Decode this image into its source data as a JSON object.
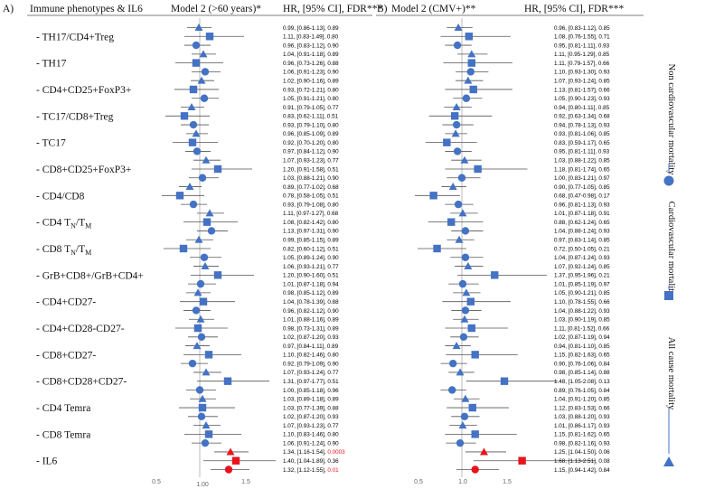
{
  "chart_data": {
    "type": "forest",
    "panel_a": {
      "tag": "A)",
      "header_label": "Immune phenotypes & IL6",
      "header_model": "Model 2 (>60 years)*",
      "header_hr": "HR, [95% CI], FDR***",
      "x_ticks": [
        "0.5",
        "1.00",
        "1.5"
      ]
    },
    "panel_b": {
      "tag": "B)",
      "header_model": "Model 2 (CMV+)**",
      "header_hr": "HR, [95% CI], FDR***",
      "x_ticks": [
        "0.5",
        "1.0",
        "1.5"
      ]
    },
    "x_range": [
      0.3,
      1.9
    ],
    "phenotypes": [
      {
        "label": "- TH17/CD4+Treg",
        "sub": null
      },
      {
        "label": "- TH17",
        "sub": null
      },
      {
        "label": "- CD4+CD25+FoxP3+",
        "sub": null
      },
      {
        "label": "- TC17/CD8+Treg",
        "sub": null
      },
      {
        "label": "- TC17",
        "sub": null
      },
      {
        "label": "- CD8+CD25+FoxP3+",
        "sub": null
      },
      {
        "label": "- CD4/CD8",
        "sub": null
      },
      {
        "label": "- CD4 T",
        "sub": [
          "N",
          "/T",
          "M"
        ]
      },
      {
        "label": "- CD8 T",
        "sub": [
          "N",
          "/T",
          "M"
        ]
      },
      {
        "label": "- GrB+CD8+/GrB+CD4+",
        "sub": null
      },
      {
        "label": "- CD4+CD27-",
        "sub": null
      },
      {
        "label": "- CD4+CD28-CD27-",
        "sub": null
      },
      {
        "label": "- CD8+CD27-",
        "sub": null
      },
      {
        "label": "- CD8+CD28+CD27-",
        "sub": null
      },
      {
        "label": "- CD4 Temra",
        "sub": null
      },
      {
        "label": "- CD8 Temra",
        "sub": null
      },
      {
        "label": "- IL6",
        "sub": null
      }
    ],
    "outcomes": [
      "All cause mortality",
      "Cardiovascular mortality",
      "Non cardiovascular mortality"
    ],
    "legend": [
      {
        "label": "All cause mortality",
        "marker": "triangle"
      },
      {
        "label": "Cardiovascular mortality",
        "marker": "square"
      },
      {
        "label": "Non cardiovascular mortality",
        "marker": "circle"
      }
    ],
    "colors": {
      "blue": "#4472C4",
      "red": "#E8141B",
      "line": "#555555",
      "ref": "#aaaaaa"
    },
    "series_a": [
      {
        "hr": 0.99,
        "lo": 0.86,
        "hi": 1.13,
        "text": "0.99, [0.86-1.13], 0.89",
        "fdr": null
      },
      {
        "hr": 1.11,
        "lo": 0.83,
        "hi": 1.49,
        "text": "1.11, [0.83-1.49], 0.80",
        "fdr": null
      },
      {
        "hr": 0.96,
        "lo": 0.83,
        "hi": 1.12,
        "text": "0.96, [0.83-1.12], 0.90",
        "fdr": null
      },
      {
        "hr": 1.04,
        "lo": 0.91,
        "hi": 1.18,
        "text": "1.04, [0.91-1.18], 0.89",
        "fdr": null
      },
      {
        "hr": 0.96,
        "lo": 0.73,
        "hi": 1.26,
        "text": "0.96, [0.73-1.26], 0.88",
        "fdr": null
      },
      {
        "hr": 1.06,
        "lo": 0.91,
        "hi": 1.23,
        "text": "1.06, [0.91-1.23], 0.90",
        "fdr": null
      },
      {
        "hr": 1.02,
        "lo": 0.9,
        "hi": 1.16,
        "text": "1.02, [0.90-1.16], 0.89",
        "fdr": null
      },
      {
        "hr": 0.93,
        "lo": 0.72,
        "hi": 1.21,
        "text": "0.93, [0.72-1.21], 0.80",
        "fdr": null
      },
      {
        "hr": 1.05,
        "lo": 0.91,
        "hi": 1.21,
        "text": "1.05, [0.91-1.21], 0.80",
        "fdr": null
      },
      {
        "hr": 0.91,
        "lo": 0.79,
        "hi": 1.05,
        "text": "0.91, [0.79-1.05], 0.77",
        "fdr": null
      },
      {
        "hr": 0.83,
        "lo": 0.62,
        "hi": 1.11,
        "text": "0.83, [0.62-1.11], 0.51",
        "fdr": null
      },
      {
        "hr": 0.93,
        "lo": 0.79,
        "hi": 1.1,
        "text": "0.93, [0.79-1.10], 0.80",
        "fdr": null
      },
      {
        "hr": 0.96,
        "lo": 0.85,
        "hi": 1.09,
        "text": "0.96, [0.85-1.09], 0.89",
        "fdr": null
      },
      {
        "hr": 0.92,
        "lo": 0.7,
        "hi": 1.2,
        "text": "0.92, [0.70-1.20], 0.80",
        "fdr": null
      },
      {
        "hr": 0.97,
        "lo": 0.84,
        "hi": 1.12,
        "text": "0.97, [0.84-1.12], 0.90",
        "fdr": null
      },
      {
        "hr": 1.07,
        "lo": 0.93,
        "hi": 1.23,
        "text": "1.07, [0.93-1.23], 0.77",
        "fdr": null
      },
      {
        "hr": 1.2,
        "lo": 0.91,
        "hi": 1.58,
        "text": "1.20, [0.91-1.58], 0.51",
        "fdr": null
      },
      {
        "hr": 1.03,
        "lo": 0.88,
        "hi": 1.21,
        "text": "1.03, [0.88-1.21], 0.90",
        "fdr": null
      },
      {
        "hr": 0.89,
        "lo": 0.77,
        "hi": 1.02,
        "text": "0.89, [0.77-1.02], 0.68",
        "fdr": null
      },
      {
        "hr": 0.78,
        "lo": 0.58,
        "hi": 1.05,
        "text": "0.78, [0.58-1.05], 0.51",
        "fdr": null
      },
      {
        "hr": 0.93,
        "lo": 0.79,
        "hi": 1.08,
        "text": "0.93, [0.79-1.08], 0.80",
        "fdr": null
      },
      {
        "hr": 1.11,
        "lo": 0.97,
        "hi": 1.27,
        "text": "1.11, [0.97-1.27], 0.68",
        "fdr": null
      },
      {
        "hr": 1.08,
        "lo": 0.82,
        "hi": 1.42,
        "text": "1.08, [0.82-1.42], 0.80",
        "fdr": null
      },
      {
        "hr": 1.13,
        "lo": 0.97,
        "hi": 1.31,
        "text": "1.13, [0.97-1.31], 0.90",
        "fdr": null
      },
      {
        "hr": 0.99,
        "lo": 0.85,
        "hi": 1.15,
        "text": "0.99, [0.85-1.15], 0.89",
        "fdr": null
      },
      {
        "hr": 0.82,
        "lo": 0.6,
        "hi": 1.12,
        "text": "0.82, [0.60-1.12], 0.51",
        "fdr": null
      },
      {
        "hr": 1.05,
        "lo": 0.89,
        "hi": 1.24,
        "text": "1.05, [0.89-1.24], 0.90",
        "fdr": null
      },
      {
        "hr": 1.06,
        "lo": 0.93,
        "hi": 1.21,
        "text": "1.06, [0.93-1.21], 0.77",
        "fdr": null
      },
      {
        "hr": 1.2,
        "lo": 0.9,
        "hi": 1.6,
        "text": "1.20, [0.90-1.60], 0.51",
        "fdr": null
      },
      {
        "hr": 1.01,
        "lo": 0.87,
        "hi": 1.18,
        "text": "1.01, [0.87-1.18], 0.94",
        "fdr": null
      },
      {
        "hr": 0.98,
        "lo": 0.85,
        "hi": 1.12,
        "text": "0.98, [0.85-1.12], 0.89",
        "fdr": null
      },
      {
        "hr": 1.04,
        "lo": 0.78,
        "hi": 1.39,
        "text": "1.04, [0.78-1.39], 0.88",
        "fdr": null
      },
      {
        "hr": 0.96,
        "lo": 0.82,
        "hi": 1.12,
        "text": "0.96, [0.82-1.12], 0.90",
        "fdr": null
      },
      {
        "hr": 1.01,
        "lo": 0.88,
        "hi": 1.16,
        "text": "1.01, [0.88-1.16], 0.89",
        "fdr": null
      },
      {
        "hr": 0.98,
        "lo": 0.73,
        "hi": 1.31,
        "text": "0.98, [0.73-1.31], 0.89",
        "fdr": null
      },
      {
        "hr": 1.02,
        "lo": 0.87,
        "hi": 1.2,
        "text": "1.02, [0.87-1.20], 0.93",
        "fdr": null
      },
      {
        "hr": 0.97,
        "lo": 0.84,
        "hi": 1.11,
        "text": "0.97, [0.84-1.11], 0.89",
        "fdr": null
      },
      {
        "hr": 1.1,
        "lo": 0.82,
        "hi": 1.46,
        "text": "1.10, [0.82-1.46], 0.80",
        "fdr": null
      },
      {
        "hr": 0.92,
        "lo": 0.79,
        "hi": 1.09,
        "text": "0.92, [0.79-1.09], 0.90",
        "fdr": null
      },
      {
        "hr": 1.07,
        "lo": 0.93,
        "hi": 1.24,
        "text": "1.07, [0.93-1.24], 0.77",
        "fdr": null
      },
      {
        "hr": 1.31,
        "lo": 0.97,
        "hi": 1.77,
        "text": "1.31, [0.97-1.77], 0.51",
        "fdr": null
      },
      {
        "hr": 1.0,
        "lo": 0.85,
        "hi": 1.18,
        "text": "1.00, [0.85-1.18], 0.96",
        "fdr": null
      },
      {
        "hr": 1.03,
        "lo": 0.89,
        "hi": 1.18,
        "text": "1.03, [0.89-1.18], 0.89",
        "fdr": null
      },
      {
        "hr": 1.03,
        "lo": 0.77,
        "hi": 1.39,
        "text": "1.03, [0.77-1.39], 0.88",
        "fdr": null
      },
      {
        "hr": 1.02,
        "lo": 0.87,
        "hi": 1.2,
        "text": "1.02, [0.87-1.20], 0.93",
        "fdr": null
      },
      {
        "hr": 1.07,
        "lo": 0.93,
        "hi": 1.23,
        "text": "1.07, [0.93-1.23], 0.77",
        "fdr": null
      },
      {
        "hr": 1.1,
        "lo": 0.83,
        "hi": 1.46,
        "text": "1.10, [0.83-1.46], 0.80",
        "fdr": null
      },
      {
        "hr": 1.06,
        "lo": 0.91,
        "hi": 1.24,
        "text": "1.06, [0.91-1.24], 0.90",
        "fdr": null
      },
      {
        "hr": 1.34,
        "lo": 1.16,
        "hi": 1.54,
        "text": "1.34, [1.16-1.54], ",
        "fdr": "0.0003"
      },
      {
        "hr": 1.4,
        "lo": 1.04,
        "hi": 1.89,
        "text": "1.40, [1.04-1.89], 0.36",
        "fdr": null
      },
      {
        "hr": 1.32,
        "lo": 1.12,
        "hi": 1.55,
        "text": "1.32, [1.12-1.55], ",
        "fdr": "0.01"
      }
    ],
    "series_b": [
      {
        "hr": 0.96,
        "lo": 0.83,
        "hi": 1.12,
        "text": "0.96, [0.83-1.12], 0.85",
        "fdr": null
      },
      {
        "hr": 1.08,
        "lo": 0.76,
        "hi": 1.55,
        "text": "1.08, [0.76-1.55], 0.71",
        "fdr": null
      },
      {
        "hr": 0.95,
        "lo": 0.81,
        "hi": 1.11,
        "text": "0.95, [0.81-1.11], 0.93",
        "fdr": null
      },
      {
        "hr": 1.11,
        "lo": 0.95,
        "hi": 1.29,
        "text": "1.11, [0.95-1.29], 0.85",
        "fdr": null
      },
      {
        "hr": 1.11,
        "lo": 0.79,
        "hi": 1.57,
        "text": "1.11, [0.79-1.57], 0.66",
        "fdr": null
      },
      {
        "hr": 1.1,
        "lo": 0.93,
        "hi": 1.3,
        "text": "1.10, [0.93-1.30], 0.93",
        "fdr": null
      },
      {
        "hr": 1.07,
        "lo": 0.93,
        "hi": 1.24,
        "text": "1.07, [0.93-1.24], 0.85",
        "fdr": null
      },
      {
        "hr": 1.13,
        "lo": 0.81,
        "hi": 1.57,
        "text": "1.13, [0.81-1.57], 0.66",
        "fdr": null
      },
      {
        "hr": 1.05,
        "lo": 0.9,
        "hi": 1.23,
        "text": "1.05, [0.90-1.23], 0.93",
        "fdr": null
      },
      {
        "hr": 0.94,
        "lo": 0.8,
        "hi": 1.11,
        "text": "0.94, [0.80-1.11], 0.85",
        "fdr": null
      },
      {
        "hr": 0.92,
        "lo": 0.63,
        "hi": 1.34,
        "text": "0.92, [0.63-1.34], 0.68",
        "fdr": null
      },
      {
        "hr": 0.94,
        "lo": 0.78,
        "hi": 1.13,
        "text": "0.94, [0.78-1.13], 0.93",
        "fdr": null
      },
      {
        "hr": 0.93,
        "lo": 0.81,
        "hi": 1.06,
        "text": "0.93, [0.81-1.06], 0.85",
        "fdr": null
      },
      {
        "hr": 0.83,
        "lo": 0.59,
        "hi": 1.17,
        "text": "0.83, [0.59-1.17], 0.65",
        "fdr": null
      },
      {
        "hr": 0.95,
        "lo": 0.81,
        "hi": 1.11,
        "text": "0.95, [0.81-1.11], 0.93",
        "fdr": null
      },
      {
        "hr": 1.03,
        "lo": 0.88,
        "hi": 1.22,
        "text": "1.03, [0.88-1.22], 0.85",
        "fdr": null
      },
      {
        "hr": 1.18,
        "lo": 0.81,
        "hi": 1.74,
        "text": "1.18, [0.81-1.74], 0.65",
        "fdr": null
      },
      {
        "hr": 1.0,
        "lo": 0.83,
        "hi": 1.21,
        "text": "1.00, [0.83-1.21], 0.97",
        "fdr": null
      },
      {
        "hr": 0.9,
        "lo": 0.77,
        "hi": 1.05,
        "text": "0.90, [0.77-1.05], 0.85",
        "fdr": null
      },
      {
        "hr": 0.68,
        "lo": 0.47,
        "hi": 0.98,
        "text": "0.68, [0.47-0.98], 0.17",
        "fdr": null
      },
      {
        "hr": 0.96,
        "lo": 0.81,
        "hi": 1.13,
        "text": "0.96, [0.81-1.13], 0.93",
        "fdr": null
      },
      {
        "hr": 1.01,
        "lo": 0.87,
        "hi": 1.18,
        "text": "1.01, [0.87-1.18], 0.91",
        "fdr": null
      },
      {
        "hr": 0.88,
        "lo": 0.62,
        "hi": 1.24,
        "text": "0.88, [0.62-1.24], 0.65",
        "fdr": null
      },
      {
        "hr": 1.04,
        "lo": 0.88,
        "hi": 1.24,
        "text": "1.04, [0.88-1.24], 0.93",
        "fdr": null
      },
      {
        "hr": 0.97,
        "lo": 0.83,
        "hi": 1.14,
        "text": "0.97, [0.83-1.14], 0.85",
        "fdr": null
      },
      {
        "hr": 0.72,
        "lo": 0.5,
        "hi": 1.05,
        "text": "0.72, [0.50-1.05], 0.21",
        "fdr": null
      },
      {
        "hr": 1.04,
        "lo": 0.87,
        "hi": 1.24,
        "text": "1.04, [0.87-1.24], 0.93",
        "fdr": null
      },
      {
        "hr": 1.07,
        "lo": 0.92,
        "hi": 1.24,
        "text": "1.07, [0.92-1.24], 0.85",
        "fdr": null
      },
      {
        "hr": 1.37,
        "lo": 0.95,
        "hi": 1.96,
        "text": "1.37, [0.95-1.96], 0.21",
        "fdr": null
      },
      {
        "hr": 1.01,
        "lo": 0.85,
        "hi": 1.19,
        "text": "1.01, [0.85-1.19], 0.97",
        "fdr": null
      },
      {
        "hr": 1.05,
        "lo": 0.9,
        "hi": 1.21,
        "text": "1.05, [0.90-1.21], 0.85",
        "fdr": null
      },
      {
        "hr": 1.1,
        "lo": 0.78,
        "hi": 1.55,
        "text": "1.10, [0.78-1.55], 0.66",
        "fdr": null
      },
      {
        "hr": 1.04,
        "lo": 0.88,
        "hi": 1.22,
        "text": "1.04, [0.88-1.22], 0.93",
        "fdr": null
      },
      {
        "hr": 1.03,
        "lo": 0.9,
        "hi": 1.19,
        "text": "1.03, [0.90-1.19], 0.85",
        "fdr": null
      },
      {
        "hr": 1.11,
        "lo": 0.81,
        "hi": 1.52,
        "text": "1.11, [0.81-1.52], 0.66",
        "fdr": null
      },
      {
        "hr": 1.02,
        "lo": 0.87,
        "hi": 1.19,
        "text": "1.02, [0.87-1.19], 0.94",
        "fdr": null
      },
      {
        "hr": 0.94,
        "lo": 0.81,
        "hi": 1.1,
        "text": "0.94, [0.81-1.10], 0.85",
        "fdr": null
      },
      {
        "hr": 1.15,
        "lo": 0.82,
        "hi": 1.63,
        "text": "1.15, [0.82-1.63], 0.65",
        "fdr": null
      },
      {
        "hr": 0.9,
        "lo": 0.76,
        "hi": 1.06,
        "text": "0.90, [0.76-1.06], 0.84",
        "fdr": null
      },
      {
        "hr": 0.98,
        "lo": 0.85,
        "hi": 1.14,
        "text": "0.98, [0.85-1.14], 0.88",
        "fdr": null
      },
      {
        "hr": 1.48,
        "lo": 1.05,
        "hi": 2.08,
        "text": "1.48, [1.05-2.08], 0.13",
        "fdr": null
      },
      {
        "hr": 0.89,
        "lo": 0.76,
        "hi": 1.05,
        "text": "0.89, [0.76-1.05], 0.84",
        "fdr": null
      },
      {
        "hr": 1.04,
        "lo": 0.91,
        "hi": 1.2,
        "text": "1.04, [0.91-1.20], 0.85",
        "fdr": null
      },
      {
        "hr": 1.12,
        "lo": 0.83,
        "hi": 1.53,
        "text": "1.12, [0.83-1.53], 0.66",
        "fdr": null
      },
      {
        "hr": 1.03,
        "lo": 0.88,
        "hi": 1.2,
        "text": "1.03, [0.88-1.20], 0.93",
        "fdr": null
      },
      {
        "hr": 1.01,
        "lo": 0.86,
        "hi": 1.17,
        "text": "1.01, [0.86-1.17], 0.93",
        "fdr": null
      },
      {
        "hr": 1.15,
        "lo": 0.81,
        "hi": 1.62,
        "text": "1.15, [0.81-1.62], 0.65",
        "fdr": null
      },
      {
        "hr": 0.98,
        "lo": 0.82,
        "hi": 1.16,
        "text": "0.98, [0.82-1.16], 0.93",
        "fdr": null
      },
      {
        "hr": 1.25,
        "lo": 1.04,
        "hi": 1.5,
        "text": "1.25, [1.04-1.50], 0.06",
        "fdr": null
      },
      {
        "hr": 1.68,
        "lo": 1.13,
        "hi": 2.51,
        "text": "1.68, [1.13-2.51], 0.08",
        "fdr": null
      },
      {
        "hr": 1.15,
        "lo": 0.94,
        "hi": 1.42,
        "text": "1.15, [0.94-1.42], 0.84",
        "fdr": null
      }
    ]
  }
}
